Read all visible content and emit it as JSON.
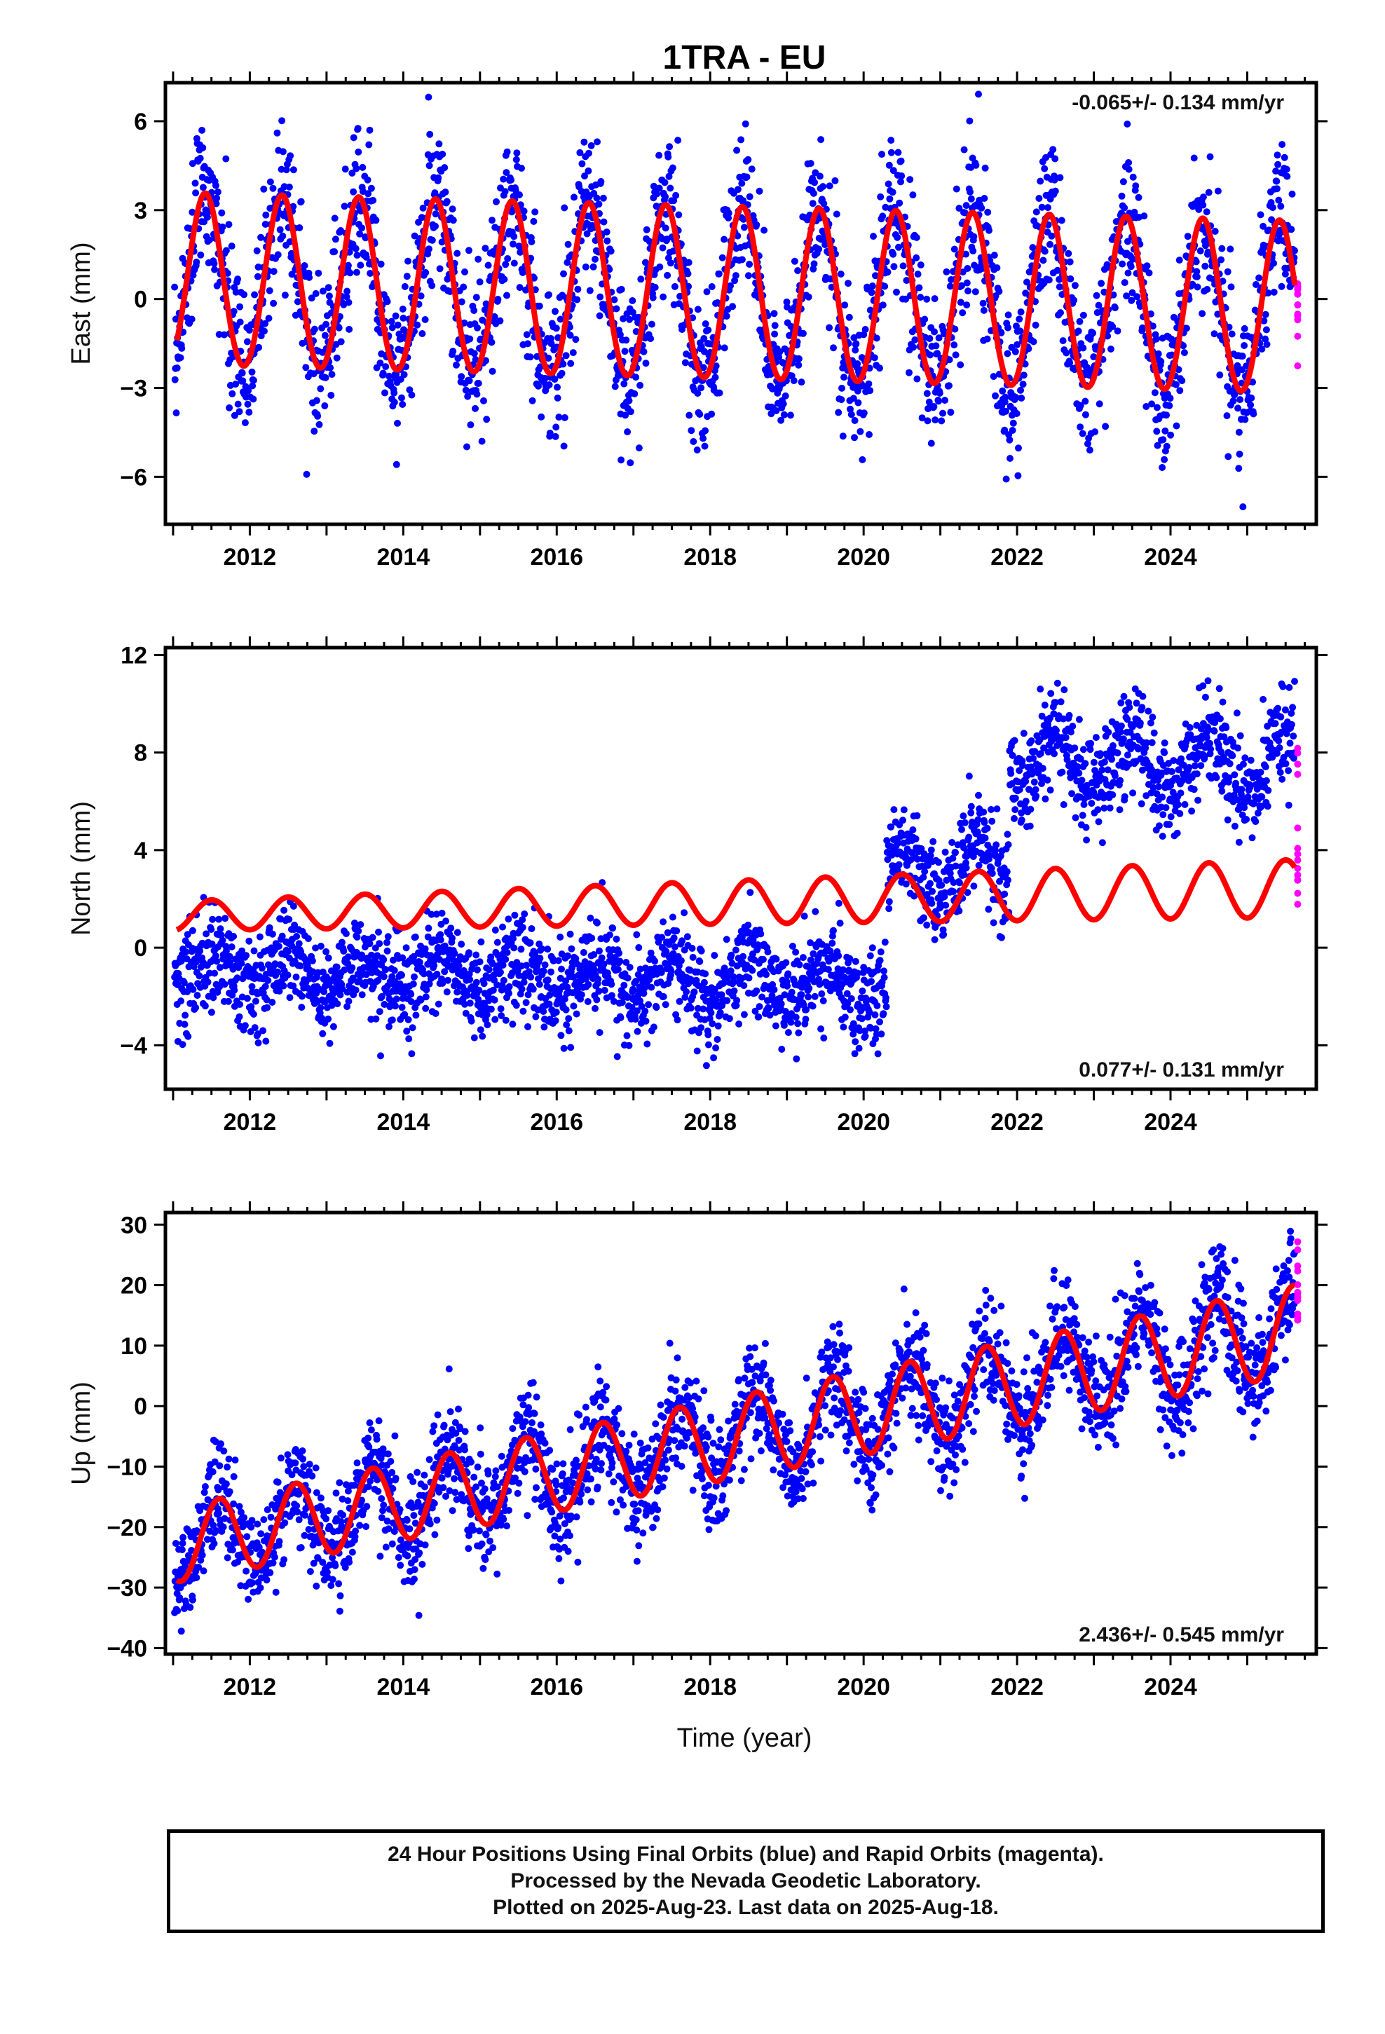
{
  "chart_data": {
    "title": "1TRA - EU",
    "type": "scatter",
    "xlabel": "Time (year)",
    "xlim": [
      2010.9,
      2025.9
    ],
    "xticks": [
      2012,
      2014,
      2016,
      2018,
      2020,
      2022,
      2024
    ],
    "colors": {
      "final": "#0000ff",
      "rapid": "#ff00ff",
      "model": "#ff0000"
    },
    "legend_note": "24 Hour Positions Using Final Orbits (blue) and Rapid Orbits (magenta).",
    "panels": [
      {
        "ylabel": "East (mm)",
        "ylim": [
          -7.6,
          7.3
        ],
        "yticks": [
          6,
          3,
          0,
          -3,
          -6
        ],
        "rate": "-0.065+/- 0.134 mm/yr",
        "rate_position": "top-right",
        "model": {
          "offset": 0.6,
          "rate": -0.065,
          "annual_amp": 2.9,
          "annual_amp_trend": 0.0,
          "phase_peak": 0.42,
          "semiannual_amp": 0.1
        },
        "scatter_sd": 1.3,
        "steps": []
      },
      {
        "ylabel": "North (mm)",
        "ylim": [
          -5.8,
          12.3
        ],
        "yticks": [
          12,
          8,
          4,
          0,
          -4
        ],
        "rate": "0.077+/- 0.131 mm/yr",
        "rate_position": "bottom-right",
        "model": {
          "offset": 1.3,
          "rate": 0.077,
          "annual_amp": 0.6,
          "annual_amp_trend": 0.04,
          "phase_peak": 0.5,
          "semiannual_amp": 0.0
        },
        "scatter_sd": 1.0,
        "data_baseline": [
          {
            "from": 2011.0,
            "to": 2020.3,
            "start": -0.8,
            "end": -1.6
          },
          {
            "from": 2020.3,
            "to": 2021.9,
            "start": 3.2,
            "end": 3.2
          },
          {
            "from": 2021.9,
            "to": 2025.65,
            "start": 7.8,
            "end": 7.4
          }
        ]
      },
      {
        "ylabel": "Up (mm)",
        "ylim": [
          -41,
          32
        ],
        "yticks": [
          30,
          20,
          10,
          0,
          -10,
          -20,
          -30,
          -40
        ],
        "rate": "2.436+/- 0.545 mm/yr",
        "rate_position": "bottom-right",
        "model": {
          "offset": -23.0,
          "rate": 2.436,
          "annual_amp": 6.2,
          "annual_amp_trend": 0.08,
          "phase_peak": 0.6,
          "semiannual_amp": 0.0
        },
        "scatter_sd": 4.5,
        "steps": []
      }
    ]
  },
  "footer": {
    "line1": "24 Hour Positions Using Final Orbits (blue) and Rapid Orbits (magenta).",
    "line2": "Processed by the Nevada Geodetic Laboratory.",
    "line3": "Plotted on 2025-Aug-23. Last data on 2025-Aug-18."
  }
}
